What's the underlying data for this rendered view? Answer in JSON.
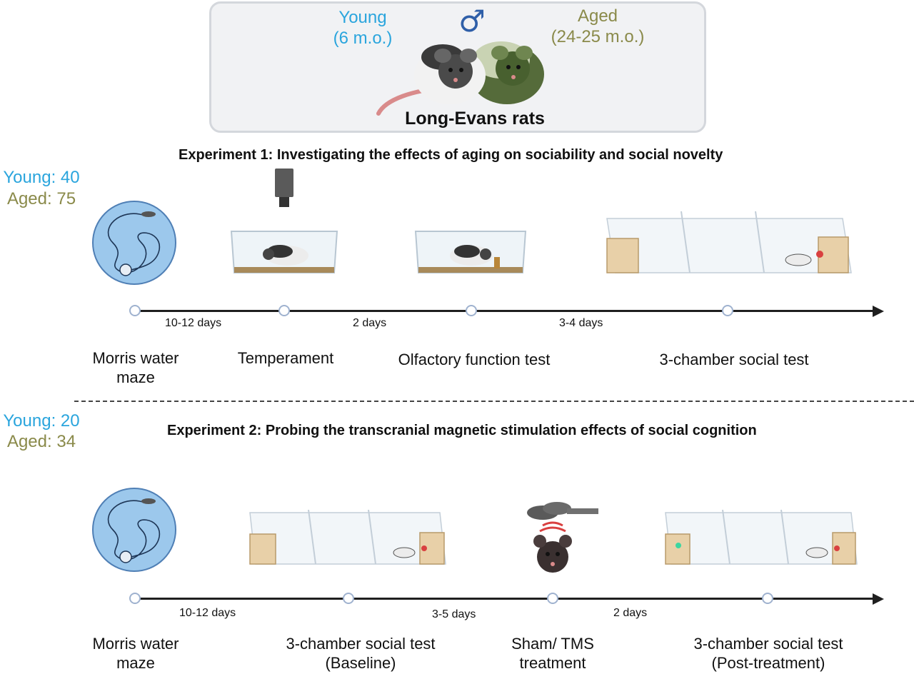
{
  "header": {
    "young_label": "Young",
    "young_age": "(6 m.o.)",
    "aged_label": "Aged",
    "aged_age": "(24-25 m.o.)",
    "sex_symbol": "♂",
    "strain": "Long-Evans rats"
  },
  "experiment1": {
    "title": "Experiment 1: Investigating the effects of aging on sociability and social novelty",
    "young_count": "Young: 40",
    "aged_count": "Aged: 75",
    "intervals": [
      "10-12 days",
      "2 days",
      "3-4 days"
    ],
    "stages": [
      {
        "line1": "Morris water",
        "line2": "maze"
      },
      {
        "line1": "Temperament",
        "line2": ""
      },
      {
        "line1": "Olfactory function test",
        "line2": ""
      },
      {
        "line1": "3-chamber social test",
        "line2": ""
      }
    ]
  },
  "experiment2": {
    "title": "Experiment 2: Probing the transcranial magnetic stimulation effects of social cognition",
    "young_count": "Young: 20",
    "aged_count": "Aged: 34",
    "intervals": [
      "10-12 days",
      "3-5 days",
      "2 days"
    ],
    "stages": [
      {
        "line1": "Morris water",
        "line2": "maze"
      },
      {
        "line1": "3-chamber social test",
        "line2": "(Baseline)"
      },
      {
        "line1": "Sham/ TMS",
        "line2": "treatment"
      },
      {
        "line1": "3-chamber social test",
        "line2": "(Post-treatment)"
      }
    ]
  },
  "colors": {
    "young": "#2aa5dd",
    "aged": "#8a8a4a",
    "timeline": "#1f1f1f",
    "node_border": "#9fb2cf",
    "pool": "#9cc8ec"
  }
}
